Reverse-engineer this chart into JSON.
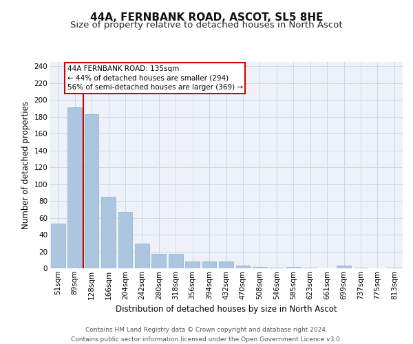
{
  "title": "44A, FERNBANK ROAD, ASCOT, SL5 8HE",
  "subtitle": "Size of property relative to detached houses in North Ascot",
  "xlabel": "Distribution of detached houses by size in North Ascot",
  "ylabel": "Number of detached properties",
  "categories": [
    "51sqm",
    "89sqm",
    "128sqm",
    "166sqm",
    "204sqm",
    "242sqm",
    "280sqm",
    "318sqm",
    "356sqm",
    "394sqm",
    "432sqm",
    "470sqm",
    "508sqm",
    "546sqm",
    "585sqm",
    "623sqm",
    "661sqm",
    "699sqm",
    "737sqm",
    "775sqm",
    "813sqm"
  ],
  "values": [
    53,
    191,
    183,
    85,
    67,
    29,
    17,
    17,
    8,
    8,
    8,
    3,
    2,
    1,
    2,
    1,
    0,
    3,
    1,
    0,
    1
  ],
  "bar_color": "#adc6e0",
  "bar_edge_color": "#8ab0d0",
  "grid_color": "#c8d8eb",
  "background_color": "#eef2f8",
  "vline_x": 1.5,
  "vline_color": "#cc0000",
  "annotation_box_text": "44A FERNBANK ROAD: 135sqm\n← 44% of detached houses are smaller (294)\n56% of semi-detached houses are larger (369) →",
  "footer_text": "Contains HM Land Registry data © Crown copyright and database right 2024.\nContains public sector information licensed under the Open Government Licence v3.0.",
  "ylim": [
    0,
    245
  ],
  "yticks": [
    0,
    20,
    40,
    60,
    80,
    100,
    120,
    140,
    160,
    180,
    200,
    220,
    240
  ],
  "title_fontsize": 11,
  "subtitle_fontsize": 9.5,
  "xlabel_fontsize": 8.5,
  "ylabel_fontsize": 8.5,
  "tick_fontsize": 7.5,
  "footer_fontsize": 6.5,
  "annotation_fontsize": 7.5
}
